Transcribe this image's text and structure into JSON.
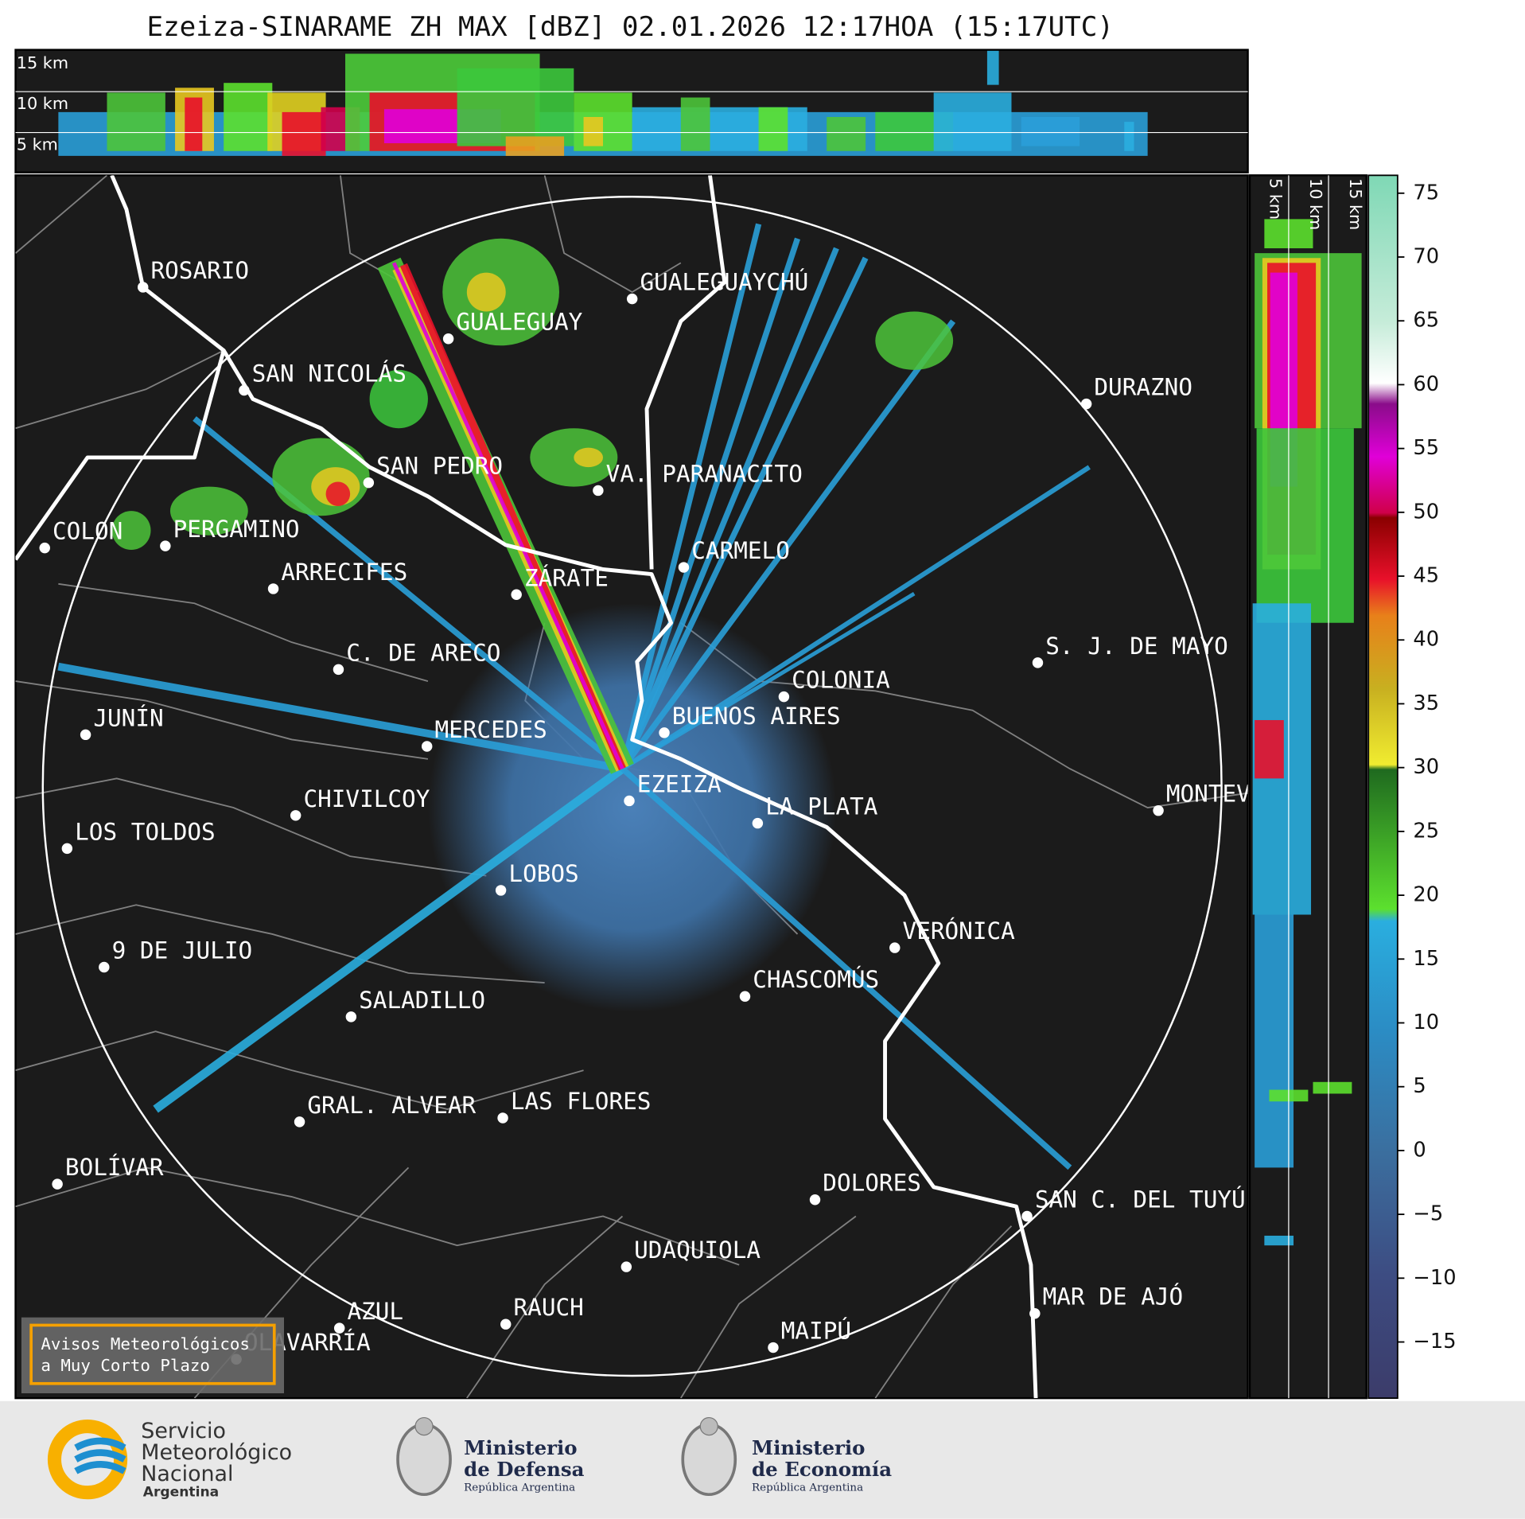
{
  "header": {
    "title": "Ezeiza-SINARAME ZH MAX [dBZ] 02.01.2026 12:17HOA (15:17UTC)"
  },
  "cross_section_top": {
    "height_labels": [
      "15 km",
      "10 km",
      "5 km"
    ]
  },
  "cross_section_right": {
    "height_labels": [
      "5 km",
      "10 km",
      "15 km"
    ]
  },
  "map": {
    "cities": [
      "ROSARIO",
      "GUALEGUAYCHÚ",
      "GUALEGUAY",
      "SAN NICOLÁS",
      "DURAZNO",
      "SAN PEDRO",
      "VA. PARANACITO",
      "CARMELO",
      "COLON",
      "PERGAMINO",
      "ARRECIFES",
      "ZÁRATE",
      "S. J. DE MAYO",
      "C. DE ARECO",
      "COLONIA",
      "JUNÍN",
      "BUENOS AIRES",
      "MERCEDES",
      "EZEIZA",
      "MONTEVIDEO",
      "CHIVILCOY",
      "LA PLATA",
      "LOS TOLDOS",
      "LOBOS",
      "VERÓNICA",
      "9 DE JULIO",
      "CHASCOMÚS",
      "SALADILLO",
      "GRAL. ALVEAR",
      "LAS FLORES",
      "BOLÍVAR",
      "DOLORES",
      "SAN C. DEL TUYÚ",
      "UDAQUIOLA",
      "MAR DE AJÓ",
      "RAUCH",
      "AZUL",
      "OLAVARRÍA",
      "MAIPÚ"
    ]
  },
  "colorbar": {
    "lim": [
      -19.4,
      76.4
    ],
    "ticks": [
      {
        "value": -15,
        "label": "−15"
      },
      {
        "value": -10,
        "label": "−10"
      },
      {
        "value": -5,
        "label": "−5"
      },
      0,
      5,
      10,
      15,
      20,
      25,
      30,
      35,
      40,
      45,
      50,
      55,
      60,
      65,
      70,
      75
    ]
  },
  "warning_button": {
    "lines": [
      "Avisos Meteorológicos",
      "a Muy Corto Plazo"
    ]
  },
  "footer": {
    "smn": [
      "Servicio",
      "Meteorológico",
      "Nacional",
      "Argentina"
    ],
    "defensa": [
      "Ministerio",
      "de Defensa",
      "República Argentina"
    ],
    "economia": [
      "Ministerio",
      "de Economía",
      "República Argentina"
    ]
  }
}
